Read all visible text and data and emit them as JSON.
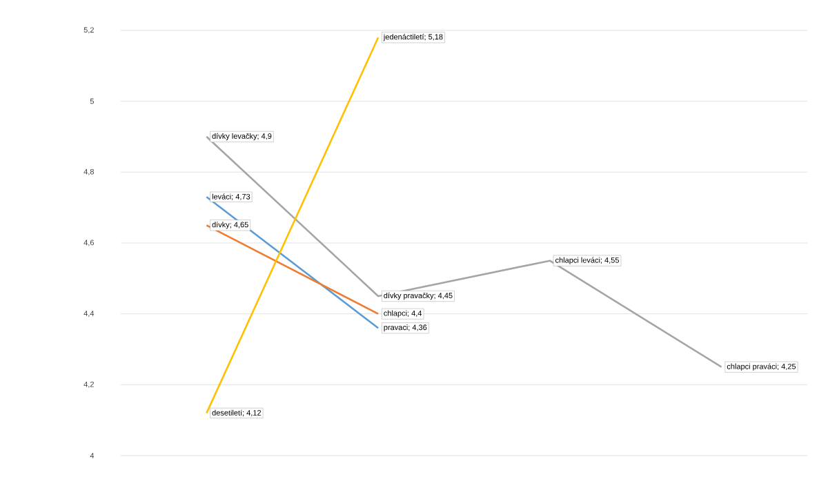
{
  "chart_data": {
    "type": "line",
    "categories": [
      null,
      null,
      null,
      null
    ],
    "series": [
      {
        "color": "#5b9bd5",
        "values": [
          4.73,
          4.36,
          null,
          null
        ],
        "value_labels": [
          "leváci; 4,73",
          "pravaci; 4,36",
          null,
          null
        ]
      },
      {
        "color": "#ed7d31",
        "values": [
          4.65,
          4.4,
          null,
          null
        ],
        "value_labels": [
          "dívky; 4,65",
          "chlapci; 4,4",
          null,
          null
        ]
      },
      {
        "color": "#a5a5a5",
        "values": [
          4.9,
          4.45,
          4.55,
          4.25
        ],
        "value_labels": [
          "dívky levačky; 4,9",
          "dívky pravačky; 4,45",
          "chlapci leváci; 4,55",
          "chlapci praváci; 4,25"
        ]
      },
      {
        "color": "#ffc000",
        "values": [
          4.12,
          5.18,
          null,
          null
        ],
        "value_labels": [
          "desetiletí; 4,12",
          "jedenáctiletí; 5,18",
          null,
          null
        ]
      }
    ],
    "ylim": [
      4,
      5.2
    ],
    "yticks": [
      4,
      {
        "value": 4.2,
        "label": "4,2"
      },
      {
        "value": 4.4,
        "label": "4,4"
      },
      {
        "value": 4.6,
        "label": "4,6"
      },
      {
        "value": 4.8,
        "label": "4,8"
      },
      5,
      {
        "value": 5.2,
        "label": "5,2"
      }
    ],
    "grid": "y",
    "marker": "none",
    "line_style": "solid"
  }
}
